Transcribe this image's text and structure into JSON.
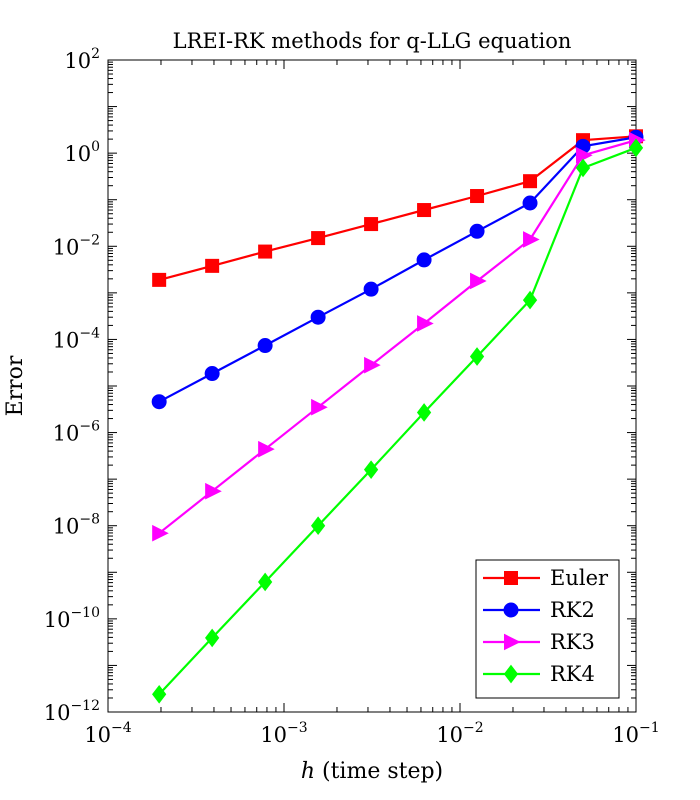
{
  "chart_data": {
    "type": "line",
    "title": "LREI-RK methods for q-LLG equation",
    "xlabel_italic": "h",
    "xlabel_rest": " (time step)",
    "ylabel": "Error",
    "xscale": "log",
    "yscale": "log",
    "xlim": [
      0.0001,
      0.1
    ],
    "ylim": [
      1e-12,
      100
    ],
    "grid": false,
    "legend_position": "bottom-right",
    "x_ticks": [
      {
        "base": "10",
        "exp": "−4",
        "value": 0.0001
      },
      {
        "base": "10",
        "exp": "−3",
        "value": 0.001
      },
      {
        "base": "10",
        "exp": "−2",
        "value": 0.01
      },
      {
        "base": "10",
        "exp": "−1",
        "value": 0.1
      }
    ],
    "y_ticks": [
      {
        "base": "10",
        "exp": "−12",
        "value": 1e-12
      },
      {
        "base": "10",
        "exp": "−10",
        "value": 1e-10
      },
      {
        "base": "10",
        "exp": "−8",
        "value": 1e-08
      },
      {
        "base": "10",
        "exp": "−6",
        "value": 1e-06
      },
      {
        "base": "10",
        "exp": "−4",
        "value": 0.0001
      },
      {
        "base": "10",
        "exp": "−2",
        "value": 0.01
      },
      {
        "base": "10",
        "exp": "0",
        "value": 1
      },
      {
        "base": "10",
        "exp": "2",
        "value": 100
      }
    ],
    "x": [
      0.1,
      0.05,
      0.025,
      0.0125,
      0.00625,
      0.003125,
      0.0015625,
      0.00078125,
      0.000390625,
      0.0001953125
    ],
    "series": [
      {
        "name": "Euler",
        "color": "#ff0000",
        "marker": "square",
        "values": [
          2.3,
          1.9,
          0.25,
          0.12,
          0.06,
          0.03,
          0.015,
          0.0077,
          0.0038,
          0.0019
        ]
      },
      {
        "name": "RK2",
        "color": "#0000ff",
        "marker": "circle",
        "values": [
          2.2,
          1.4,
          0.085,
          0.021,
          0.0051,
          0.0012,
          0.0003,
          7.4e-05,
          1.85e-05,
          4.6e-06
        ]
      },
      {
        "name": "RK3",
        "color": "#ff00ff",
        "marker": "triangle-right",
        "values": [
          1.9,
          0.9,
          0.014,
          0.0018,
          0.00022,
          2.8e-05,
          3.5e-06,
          4.4e-07,
          5.5e-08,
          6.9e-09
        ]
      },
      {
        "name": "RK4",
        "color": "#00ff00",
        "marker": "diamond",
        "values": [
          1.3,
          0.48,
          0.0007,
          4.3e-05,
          2.7e-06,
          1.6e-07,
          1e-08,
          6.2e-10,
          3.9e-11,
          2.4e-12
        ]
      }
    ]
  }
}
